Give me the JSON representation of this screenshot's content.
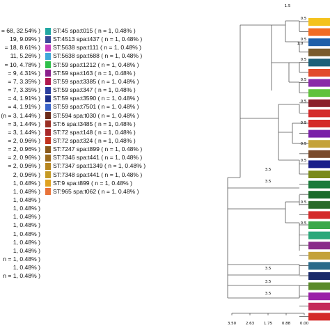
{
  "legend": {
    "left_column": [
      {
        "text": "= 68, 32.54% )"
      },
      {
        "text": "19, 9.09% )"
      },
      {
        "text": "= 18, 8.61% )"
      },
      {
        "text": "11, 5.26% )"
      },
      {
        "text": "= 10, 4.78% )"
      },
      {
        "text": "= 9, 4.31% )"
      },
      {
        "text": "= 7, 3.35% )"
      },
      {
        "text": "= 7, 3.35% )"
      },
      {
        "text": "= 4, 1.91% )"
      },
      {
        "text": "= 4, 1.91% )"
      },
      {
        "text": "(n = 3, 1.44% )"
      },
      {
        "text": "= 3, 1.44% )"
      },
      {
        "text": "= 3, 1.44% )"
      },
      {
        "text": "= 2, 0.96% )"
      },
      {
        "text": "= 2, 0.96% )"
      },
      {
        "text": "= 2, 0.96% )"
      },
      {
        "text": "= 2, 0.96% )"
      },
      {
        "text": "2, 0.96% )"
      },
      {
        "text": "1, 0.48% )"
      },
      {
        "text": "1, 0.48% )"
      },
      {
        "text": "1, 0.48% )"
      },
      {
        "text": "1, 0.48% )"
      },
      {
        "text": "1, 0.48% )"
      },
      {
        "text": "1, 0.48% )"
      },
      {
        "text": "1, 0.48% )"
      },
      {
        "text": "1, 0.48% )"
      },
      {
        "text": "1, 0.48% )"
      },
      {
        "text": "n = 1, 0.48% )"
      },
      {
        "text": "1, 0.48% )"
      },
      {
        "text": "n = 1, 0.48% )"
      }
    ],
    "right_column": [
      {
        "text": "ST:45 spa:t015 ( n = 1, 0.48% )",
        "color": "#21a7a2"
      },
      {
        "text": "ST:4513 spa:t437 ( n = 1, 0.48% )",
        "color": "#3b4b9a"
      },
      {
        "text": "ST:5638 spa:t111 ( n = 1, 0.48% )",
        "color": "#c63fc0"
      },
      {
        "text": "ST:5638 spa:t688 ( n = 1, 0.48% )",
        "color": "#3fa8d9"
      },
      {
        "text": "ST:59 spa:t1212 ( n = 1, 0.48% )",
        "color": "#2fbf4a"
      },
      {
        "text": "ST:59 spa:t163 ( n = 1, 0.48% )",
        "color": "#8a1f8c"
      },
      {
        "text": "ST:59 spa:t3385 ( n = 1, 0.48% )",
        "color": "#b0194f"
      },
      {
        "text": "ST:59 spa:t347 ( n = 1, 0.48% )",
        "color": "#2c3f9e"
      },
      {
        "text": "ST:59 spa:t3590 ( n = 1, 0.48% )",
        "color": "#1d2f8a"
      },
      {
        "text": "ST:59 spa:t7501 ( n = 1, 0.48% )",
        "color": "#3a63c9"
      },
      {
        "text": "ST:594 spa:t030 ( n = 1, 0.48% )",
        "color": "#6a2a1a"
      },
      {
        "text": "ST:6 spa:t3485 ( n = 1, 0.48% )",
        "color": "#9a2f24"
      },
      {
        "text": "ST:72 spa:t148 ( n = 1, 0.48% )",
        "color": "#a8282a"
      },
      {
        "text": "ST:72 spa:t324 ( n = 1, 0.48% )",
        "color": "#c2331f"
      },
      {
        "text": "ST:7247 spa:t899 ( n = 1, 0.48% )",
        "color": "#8a5a1c"
      },
      {
        "text": "ST:7346 spa:t441 ( n = 1, 0.48% )",
        "color": "#9c6b1e"
      },
      {
        "text": "ST:7347 spa:t1349 ( n = 1, 0.48% )",
        "color": "#b8861f"
      },
      {
        "text": "ST:7348 spa:t441 ( n = 1, 0.48% )",
        "color": "#c59a24"
      },
      {
        "text": "ST:9 spa:t899 ( n = 1, 0.48% )",
        "color": "#e0a21f"
      },
      {
        "text": "ST:965 spa:t062 ( n = 1, 0.48% )",
        "color": "#e8733a"
      }
    ]
  },
  "tree": {
    "branch_labels": [
      "1.5",
      "0.5",
      "0.5",
      "1.0",
      "0.5",
      "0.5",
      "0.5",
      "0.5",
      "0.5",
      "0.5",
      "3.5",
      "3.5",
      "0.5",
      "0.5",
      "3.5",
      "3.5",
      "3.5"
    ],
    "axis_ticks": [
      "3.50",
      "2.63",
      "1.75",
      "0.88",
      "0.00"
    ],
    "tip_colors": [
      "#f4c21c",
      "#f26c22",
      "#1f5fa8",
      "#7a5b2c",
      "#1b5f78",
      "#e24a2a",
      "#8a2aa8",
      "#5fc23c",
      "#8a1f2a",
      "#d42a2a",
      "#d42a2a",
      "#7a1fa8",
      "#c4a23a",
      "#7a4a2a",
      "#1a1f8a",
      "#7a8a1a",
      "#1a7a3a",
      "#1a6a2a",
      "#2a6a2a",
      "#d42a2a",
      "#3aa84a",
      "#2aa87a",
      "#8a2a8a",
      "#c4a23a",
      "#2a6a8a",
      "#1a2a6a",
      "#5a8a2a",
      "#9a1fa8",
      "#c42a5a",
      "#d42a2a"
    ]
  }
}
